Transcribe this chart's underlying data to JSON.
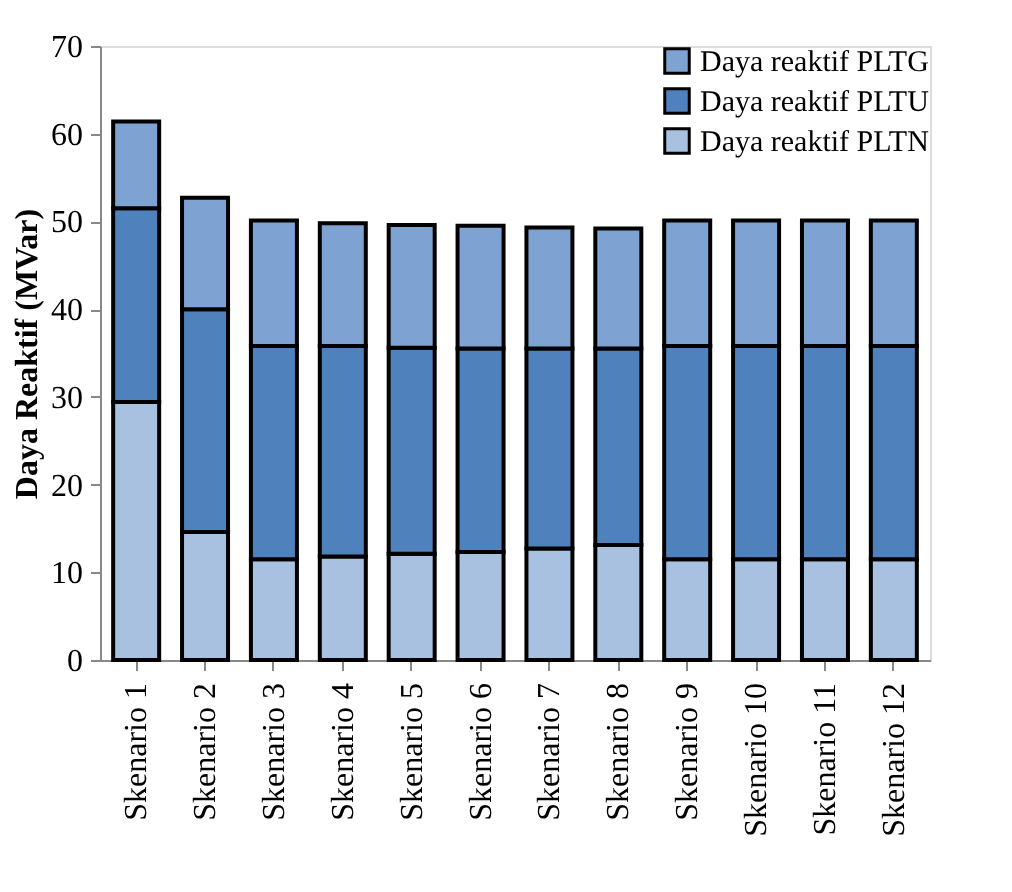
{
  "chart_data": {
    "type": "bar",
    "stacked": true,
    "ylabel": "Daya Reaktif (MVar)",
    "categories": [
      "Skenario 1",
      "Skenario 2",
      "Skenario 3",
      "Skenario 4",
      "Skenario 5",
      "Skenario 6",
      "Skenario 7",
      "Skenario 8",
      "Skenario 9",
      "Skenario 10",
      "Skenario 11",
      "Skenario 12"
    ],
    "series": [
      {
        "name": "Daya reaktif PLTN",
        "color": "#a9c1e0",
        "values": [
          29.4,
          14.6,
          11.5,
          11.8,
          12.1,
          12.3,
          12.7,
          13.1,
          11.5,
          11.5,
          11.5,
          11.5
        ]
      },
      {
        "name": "Daya reaktif PLTU",
        "color": "#4f81bd",
        "values": [
          22.1,
          25.4,
          24.3,
          24.0,
          23.5,
          23.2,
          22.8,
          22.4,
          24.3,
          24.3,
          24.3,
          24.3
        ]
      },
      {
        "name": "Daya reaktif PLTG",
        "color": "#7ea3d2",
        "values": [
          9.9,
          12.7,
          14.3,
          14.0,
          14.0,
          14.0,
          13.8,
          13.7,
          14.3,
          14.3,
          14.3,
          14.3
        ]
      }
    ],
    "ylim": [
      0,
      70
    ],
    "yticks": [
      0,
      10,
      20,
      30,
      40,
      50,
      60,
      70
    ],
    "grid": false,
    "legend": "top right"
  }
}
